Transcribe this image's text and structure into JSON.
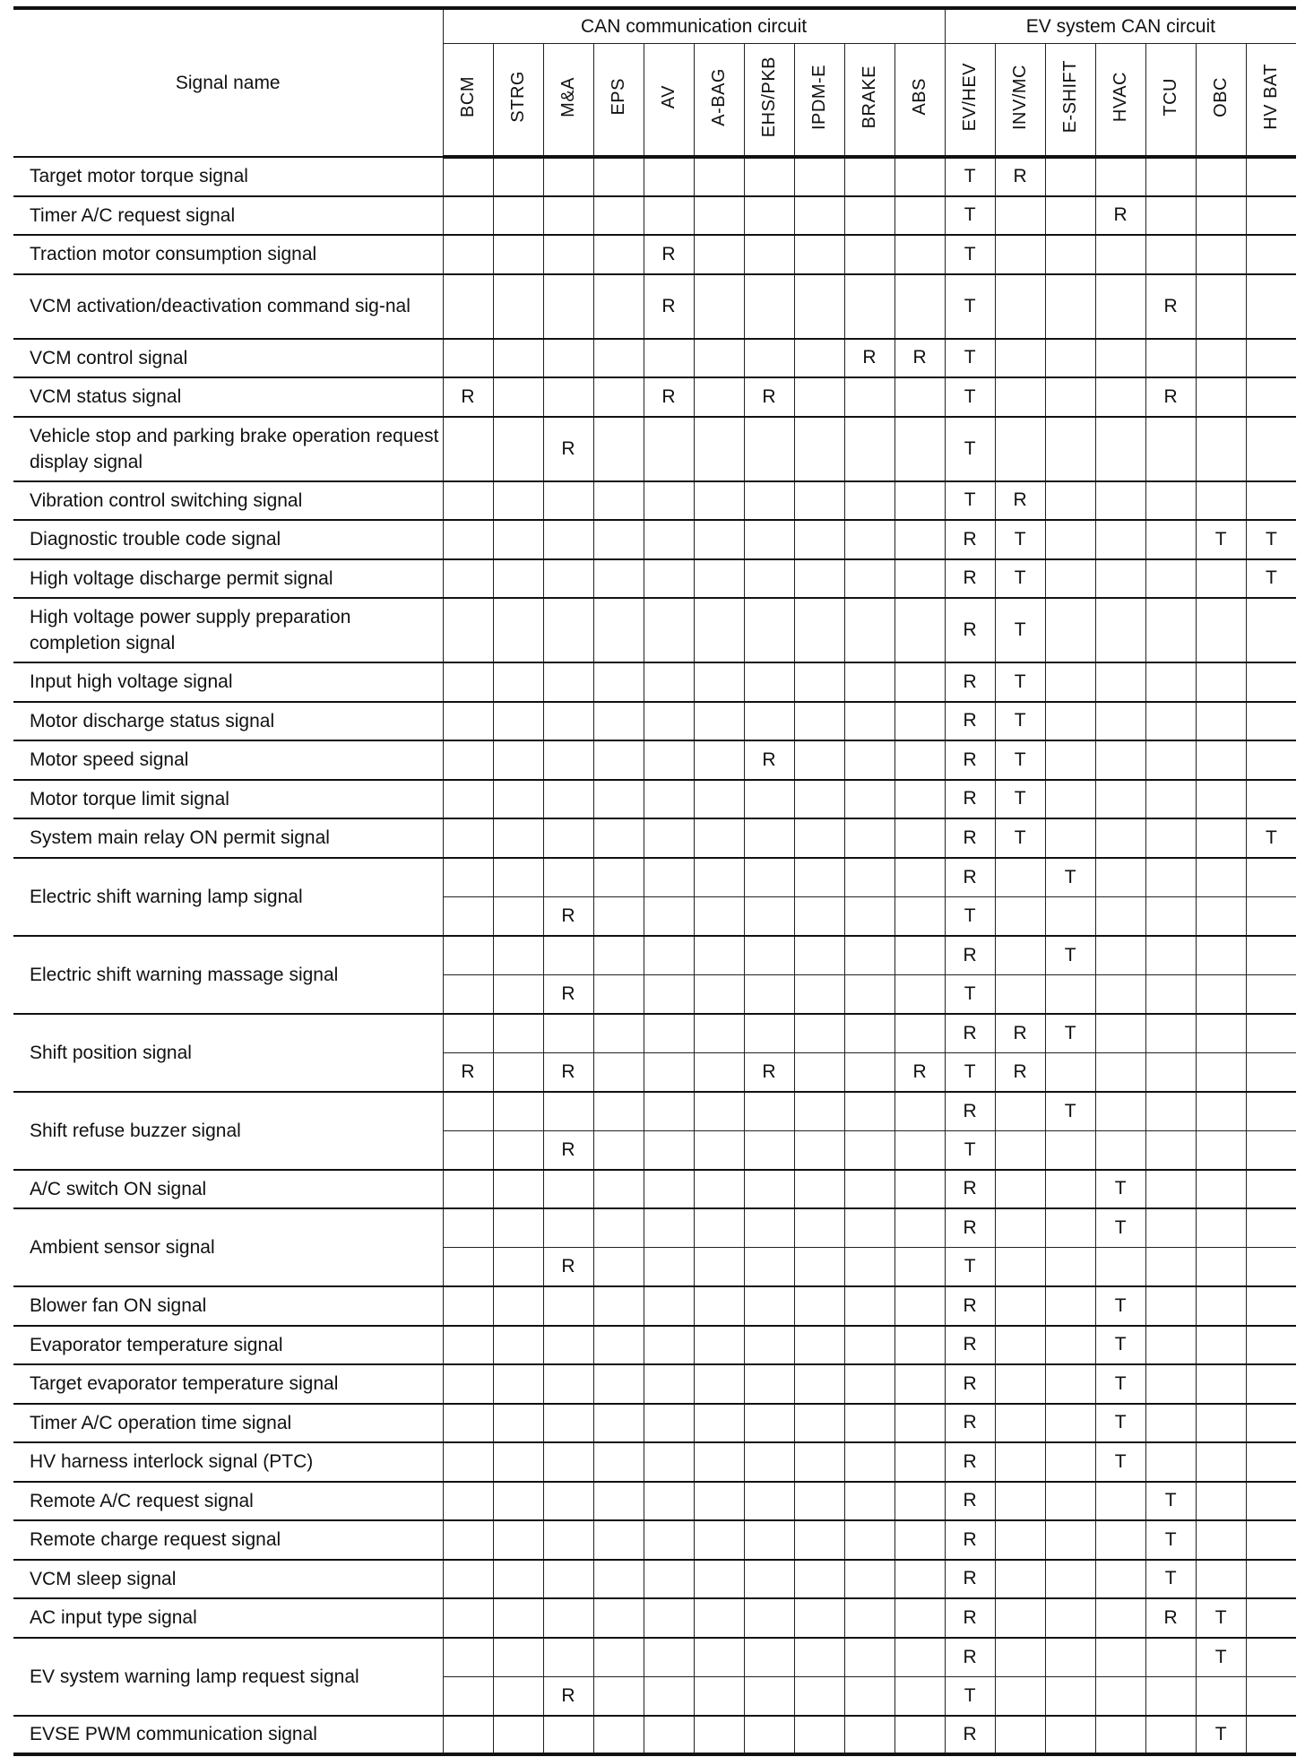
{
  "header": {
    "signal_name": "Signal name",
    "group_can": "CAN communication circuit",
    "group_ev": "EV system CAN circuit",
    "columns": [
      "BCM",
      "STRG",
      "M&A",
      "EPS",
      "AV",
      "A-BAG",
      "EHS/PKB",
      "IPDM-E",
      "BRAKE",
      "ABS",
      "EV/HEV",
      "INV/MC",
      "E-SHIFT",
      "HVAC",
      "TCU",
      "OBC",
      "HV BAT"
    ]
  },
  "rows": [
    {
      "signal": "Target motor torque signal",
      "sub": [
        [
          "",
          "",
          "",
          "",
          "",
          "",
          "",
          "",
          "",
          "",
          "T",
          "R",
          "",
          "",
          "",
          "",
          ""
        ]
      ]
    },
    {
      "signal": "Timer A/C request signal",
      "sub": [
        [
          "",
          "",
          "",
          "",
          "",
          "",
          "",
          "",
          "",
          "",
          "T",
          "",
          "",
          "R",
          "",
          "",
          ""
        ]
      ]
    },
    {
      "signal": "Traction motor consumption signal",
      "sub": [
        [
          "",
          "",
          "",
          "",
          "R",
          "",
          "",
          "",
          "",
          "",
          "T",
          "",
          "",
          "",
          "",
          "",
          ""
        ]
      ]
    },
    {
      "signal": "VCM activation/deactivation command sig-nal",
      "sub": [
        [
          "",
          "",
          "",
          "",
          "R",
          "",
          "",
          "",
          "",
          "",
          "T",
          "",
          "",
          "",
          "R",
          "",
          ""
        ]
      ],
      "tall": true
    },
    {
      "signal": "VCM control signal",
      "sub": [
        [
          "",
          "",
          "",
          "",
          "",
          "",
          "",
          "",
          "R",
          "R",
          "T",
          "",
          "",
          "",
          "",
          "",
          ""
        ]
      ]
    },
    {
      "signal": "VCM status signal",
      "sub": [
        [
          "R",
          "",
          "",
          "",
          "R",
          "",
          "R",
          "",
          "",
          "",
          "T",
          "",
          "",
          "",
          "R",
          "",
          ""
        ]
      ]
    },
    {
      "signal": "Vehicle stop and parking brake operation request display signal",
      "sub": [
        [
          "",
          "",
          "R",
          "",
          "",
          "",
          "",
          "",
          "",
          "",
          "T",
          "",
          "",
          "",
          "",
          "",
          ""
        ]
      ],
      "tall": true
    },
    {
      "signal": "Vibration control switching signal",
      "sub": [
        [
          "",
          "",
          "",
          "",
          "",
          "",
          "",
          "",
          "",
          "",
          "T",
          "R",
          "",
          "",
          "",
          "",
          ""
        ]
      ]
    },
    {
      "signal": "Diagnostic trouble code signal",
      "sub": [
        [
          "",
          "",
          "",
          "",
          "",
          "",
          "",
          "",
          "",
          "",
          "R",
          "T",
          "",
          "",
          "",
          "T",
          "T"
        ]
      ]
    },
    {
      "signal": "High voltage discharge permit signal",
      "sub": [
        [
          "",
          "",
          "",
          "",
          "",
          "",
          "",
          "",
          "",
          "",
          "R",
          "T",
          "",
          "",
          "",
          "",
          "T"
        ]
      ]
    },
    {
      "signal": "High voltage power supply preparation completion signal",
      "sub": [
        [
          "",
          "",
          "",
          "",
          "",
          "",
          "",
          "",
          "",
          "",
          "R",
          "T",
          "",
          "",
          "",
          "",
          ""
        ]
      ],
      "tall": true
    },
    {
      "signal": "Input high voltage signal",
      "sub": [
        [
          "",
          "",
          "",
          "",
          "",
          "",
          "",
          "",
          "",
          "",
          "R",
          "T",
          "",
          "",
          "",
          "",
          ""
        ]
      ]
    },
    {
      "signal": "Motor discharge status signal",
      "sub": [
        [
          "",
          "",
          "",
          "",
          "",
          "",
          "",
          "",
          "",
          "",
          "R",
          "T",
          "",
          "",
          "",
          "",
          ""
        ]
      ]
    },
    {
      "signal": "Motor speed signal",
      "sub": [
        [
          "",
          "",
          "",
          "",
          "",
          "",
          "R",
          "",
          "",
          "",
          "R",
          "T",
          "",
          "",
          "",
          "",
          ""
        ]
      ]
    },
    {
      "signal": "Motor torque limit signal",
      "sub": [
        [
          "",
          "",
          "",
          "",
          "",
          "",
          "",
          "",
          "",
          "",
          "R",
          "T",
          "",
          "",
          "",
          "",
          ""
        ]
      ]
    },
    {
      "signal": "System main relay ON permit signal",
      "sub": [
        [
          "",
          "",
          "",
          "",
          "",
          "",
          "",
          "",
          "",
          "",
          "R",
          "T",
          "",
          "",
          "",
          "",
          "T"
        ]
      ]
    },
    {
      "signal": "Electric shift warning lamp signal",
      "sub": [
        [
          "",
          "",
          "",
          "",
          "",
          "",
          "",
          "",
          "",
          "",
          "R",
          "",
          "T",
          "",
          "",
          "",
          ""
        ],
        [
          "",
          "",
          "R",
          "",
          "",
          "",
          "",
          "",
          "",
          "",
          "T",
          "",
          "",
          "",
          "",
          "",
          ""
        ]
      ]
    },
    {
      "signal": "Electric shift warning massage signal",
      "sub": [
        [
          "",
          "",
          "",
          "",
          "",
          "",
          "",
          "",
          "",
          "",
          "R",
          "",
          "T",
          "",
          "",
          "",
          ""
        ],
        [
          "",
          "",
          "R",
          "",
          "",
          "",
          "",
          "",
          "",
          "",
          "T",
          "",
          "",
          "",
          "",
          "",
          ""
        ]
      ]
    },
    {
      "signal": "Shift position signal",
      "sub": [
        [
          "",
          "",
          "",
          "",
          "",
          "",
          "",
          "",
          "",
          "",
          "R",
          "R",
          "T",
          "",
          "",
          "",
          ""
        ],
        [
          "R",
          "",
          "R",
          "",
          "",
          "",
          "R",
          "",
          "",
          "R",
          "T",
          "R",
          "",
          "",
          "",
          "",
          ""
        ]
      ]
    },
    {
      "signal": "Shift refuse buzzer signal",
      "sub": [
        [
          "",
          "",
          "",
          "",
          "",
          "",
          "",
          "",
          "",
          "",
          "R",
          "",
          "T",
          "",
          "",
          "",
          ""
        ],
        [
          "",
          "",
          "R",
          "",
          "",
          "",
          "",
          "",
          "",
          "",
          "T",
          "",
          "",
          "",
          "",
          "",
          ""
        ]
      ]
    },
    {
      "signal": "A/C switch ON signal",
      "sub": [
        [
          "",
          "",
          "",
          "",
          "",
          "",
          "",
          "",
          "",
          "",
          "R",
          "",
          "",
          "T",
          "",
          "",
          ""
        ]
      ]
    },
    {
      "signal": "Ambient sensor signal",
      "sub": [
        [
          "",
          "",
          "",
          "",
          "",
          "",
          "",
          "",
          "",
          "",
          "R",
          "",
          "",
          "T",
          "",
          "",
          ""
        ],
        [
          "",
          "",
          "R",
          "",
          "",
          "",
          "",
          "",
          "",
          "",
          "T",
          "",
          "",
          "",
          "",
          "",
          ""
        ]
      ]
    },
    {
      "signal": "Blower fan ON signal",
      "sub": [
        [
          "",
          "",
          "",
          "",
          "",
          "",
          "",
          "",
          "",
          "",
          "R",
          "",
          "",
          "T",
          "",
          "",
          ""
        ]
      ]
    },
    {
      "signal": "Evaporator temperature signal",
      "sub": [
        [
          "",
          "",
          "",
          "",
          "",
          "",
          "",
          "",
          "",
          "",
          "R",
          "",
          "",
          "T",
          "",
          "",
          ""
        ]
      ]
    },
    {
      "signal": "Target evaporator temperature signal",
      "sub": [
        [
          "",
          "",
          "",
          "",
          "",
          "",
          "",
          "",
          "",
          "",
          "R",
          "",
          "",
          "T",
          "",
          "",
          ""
        ]
      ]
    },
    {
      "signal": "Timer A/C operation time signal",
      "sub": [
        [
          "",
          "",
          "",
          "",
          "",
          "",
          "",
          "",
          "",
          "",
          "R",
          "",
          "",
          "T",
          "",
          "",
          ""
        ]
      ]
    },
    {
      "signal": "HV harness interlock signal (PTC)",
      "sub": [
        [
          "",
          "",
          "",
          "",
          "",
          "",
          "",
          "",
          "",
          "",
          "R",
          "",
          "",
          "T",
          "",
          "",
          ""
        ]
      ]
    },
    {
      "signal": "Remote A/C request signal",
      "sub": [
        [
          "",
          "",
          "",
          "",
          "",
          "",
          "",
          "",
          "",
          "",
          "R",
          "",
          "",
          "",
          "T",
          "",
          ""
        ]
      ]
    },
    {
      "signal": "Remote charge request signal",
      "sub": [
        [
          "",
          "",
          "",
          "",
          "",
          "",
          "",
          "",
          "",
          "",
          "R",
          "",
          "",
          "",
          "T",
          "",
          ""
        ]
      ]
    },
    {
      "signal": "VCM sleep signal",
      "sub": [
        [
          "",
          "",
          "",
          "",
          "",
          "",
          "",
          "",
          "",
          "",
          "R",
          "",
          "",
          "",
          "T",
          "",
          ""
        ]
      ]
    },
    {
      "signal": "AC input type signal",
      "sub": [
        [
          "",
          "",
          "",
          "",
          "",
          "",
          "",
          "",
          "",
          "",
          "R",
          "",
          "",
          "",
          "R",
          "T",
          ""
        ]
      ]
    },
    {
      "signal": "EV system warning lamp request signal",
      "sub": [
        [
          "",
          "",
          "",
          "",
          "",
          "",
          "",
          "",
          "",
          "",
          "R",
          "",
          "",
          "",
          "",
          "T",
          ""
        ],
        [
          "",
          "",
          "R",
          "",
          "",
          "",
          "",
          "",
          "",
          "",
          "T",
          "",
          "",
          "",
          "",
          "",
          ""
        ]
      ]
    },
    {
      "signal": "EVSE PWM communication signal",
      "sub": [
        [
          "",
          "",
          "",
          "",
          "",
          "",
          "",
          "",
          "",
          "",
          "R",
          "",
          "",
          "",
          "",
          "T",
          ""
        ]
      ]
    }
  ]
}
